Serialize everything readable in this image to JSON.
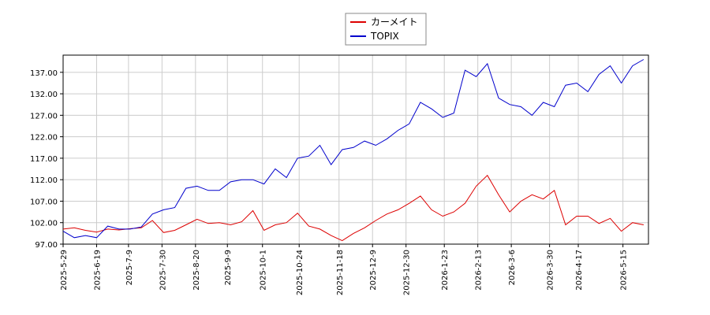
{
  "chart_data": {
    "type": "line",
    "grid": true,
    "legend": "top",
    "xlim": [
      "2025-05-29",
      "2026-05-31"
    ],
    "ylim": [
      97,
      141
    ],
    "yticks": [
      {
        "value": 97,
        "label": "97.00"
      },
      {
        "value": 102,
        "label": "102.00"
      },
      {
        "value": 107,
        "label": "107.00"
      },
      {
        "value": 112,
        "label": "112.00"
      },
      {
        "value": 117,
        "label": "117.00"
      },
      {
        "value": 122,
        "label": "122.00"
      },
      {
        "value": 127,
        "label": "127.00"
      },
      {
        "value": 132,
        "label": "132.00"
      },
      {
        "value": 137,
        "label": "137.00"
      }
    ],
    "xticks": [
      {
        "value": "2025-05-29",
        "label": "2025-5-29"
      },
      {
        "value": "2025-06-19",
        "label": "2025-6-19"
      },
      {
        "value": "2025-07-09",
        "label": "2025-7-9"
      },
      {
        "value": "2025-07-30",
        "label": "2025-7-30"
      },
      {
        "value": "2025-08-20",
        "label": "2025-8-20"
      },
      {
        "value": "2025-09-09",
        "label": "2025-9-9"
      },
      {
        "value": "2025-10-01",
        "label": "2025-10-1"
      },
      {
        "value": "2025-10-24",
        "label": "2025-10-24"
      },
      {
        "value": "2025-11-18",
        "label": "2025-11-18"
      },
      {
        "value": "2025-12-09",
        "label": "2025-12-9"
      },
      {
        "value": "2025-12-30",
        "label": "2025-12-30"
      },
      {
        "value": "2026-01-23",
        "label": "2026-1-23"
      },
      {
        "value": "2026-02-13",
        "label": "2026-2-13"
      },
      {
        "value": "2026-03-06",
        "label": "2026-3-6"
      },
      {
        "value": "2026-03-30",
        "label": "2026-3-30"
      },
      {
        "value": "2026-04-17",
        "label": "2026-4-17"
      },
      {
        "value": "2026-05-15",
        "label": "2026-5-15"
      }
    ],
    "x": [
      "2025-05-29",
      "2025-06-05",
      "2025-06-12",
      "2025-06-19",
      "2025-06-26",
      "2025-07-03",
      "2025-07-10",
      "2025-07-17",
      "2025-07-24",
      "2025-07-31",
      "2025-08-07",
      "2025-08-14",
      "2025-08-21",
      "2025-08-28",
      "2025-09-04",
      "2025-09-11",
      "2025-09-18",
      "2025-09-25",
      "2025-10-02",
      "2025-10-09",
      "2025-10-16",
      "2025-10-23",
      "2025-10-30",
      "2025-11-06",
      "2025-11-13",
      "2025-11-20",
      "2025-11-27",
      "2025-12-04",
      "2025-12-11",
      "2025-12-18",
      "2025-12-25",
      "2026-01-01",
      "2026-01-08",
      "2026-01-15",
      "2026-01-22",
      "2026-01-29",
      "2026-02-05",
      "2026-02-12",
      "2026-02-19",
      "2026-02-26",
      "2026-03-05",
      "2026-03-12",
      "2026-03-19",
      "2026-03-26",
      "2026-04-02",
      "2026-04-09",
      "2026-04-16",
      "2026-04-23",
      "2026-04-30",
      "2026-05-07",
      "2026-05-14",
      "2026-05-21",
      "2026-05-28"
    ],
    "series": [
      {
        "name": "カーメイト",
        "color": "#dd0000",
        "values": [
          100.5,
          100.8,
          100.2,
          99.8,
          100.5,
          100.3,
          100.6,
          100.8,
          102.5,
          99.7,
          100.2,
          101.5,
          102.8,
          101.8,
          102.0,
          101.5,
          102.2,
          104.8,
          100.2,
          101.5,
          102.0,
          104.2,
          101.2,
          100.5,
          99.0,
          97.8,
          99.5,
          100.8,
          102.5,
          104.0,
          105.0,
          106.5,
          108.2,
          105.0,
          103.5,
          104.5,
          106.5,
          110.5,
          113.0,
          108.5,
          104.5,
          107.0,
          108.5,
          107.5,
          109.5,
          101.5,
          103.5,
          103.5,
          101.8,
          103.0,
          100.0,
          102.0,
          101.5
        ]
      },
      {
        "name": "TOPIX",
        "color": "#0000cc",
        "values": [
          100.0,
          98.5,
          99.0,
          98.5,
          101.2,
          100.5,
          100.5,
          101.0,
          104.0,
          105.0,
          105.5,
          110.0,
          110.5,
          109.5,
          109.5,
          111.5,
          112.0,
          112.0,
          111.0,
          114.5,
          112.5,
          117.0,
          117.5,
          120.0,
          115.5,
          119.0,
          119.5,
          121.0,
          120.0,
          121.5,
          123.5,
          125.0,
          130.0,
          128.5,
          126.5,
          127.5,
          137.5,
          136.0,
          139.0,
          131.0,
          129.5,
          129.0,
          127.0,
          130.0,
          129.0,
          134.0,
          134.5,
          132.5,
          136.5,
          138.5,
          134.5,
          138.5,
          140.0
        ]
      }
    ]
  }
}
